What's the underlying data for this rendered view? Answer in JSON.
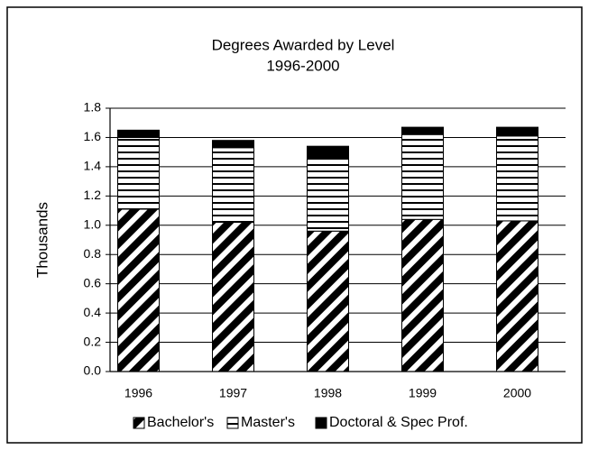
{
  "chart_data": {
    "type": "stacked-bar",
    "title": "Degrees Awarded by Level",
    "subtitle": "1996-2000",
    "ylabel": "Thousands",
    "categories": [
      "1996",
      "1997",
      "1998",
      "1999",
      "2000"
    ],
    "series": [
      {
        "name": "Bachelor's",
        "color": "#000000",
        "pattern": "diagonal",
        "values": [
          1.11,
          1.02,
          0.96,
          1.04,
          1.03
        ]
      },
      {
        "name": "Master's",
        "color": "#000000",
        "pattern": "horizontal",
        "values": [
          0.49,
          0.51,
          0.5,
          0.58,
          0.58
        ]
      },
      {
        "name": "Doctoral & Spec Prof.",
        "color": "#000000",
        "pattern": "solid",
        "values": [
          0.05,
          0.05,
          0.08,
          0.05,
          0.06
        ]
      }
    ],
    "ylim": [
      0,
      1.8
    ],
    "yticks": [
      {
        "value": 0,
        "label": "0.0"
      },
      0.2,
      0.4,
      0.6,
      0.8,
      {
        "value": 1,
        "label": "1.0"
      },
      1.2,
      1.4,
      1.6,
      1.8
    ],
    "grid": true,
    "legend": "bottom"
  }
}
